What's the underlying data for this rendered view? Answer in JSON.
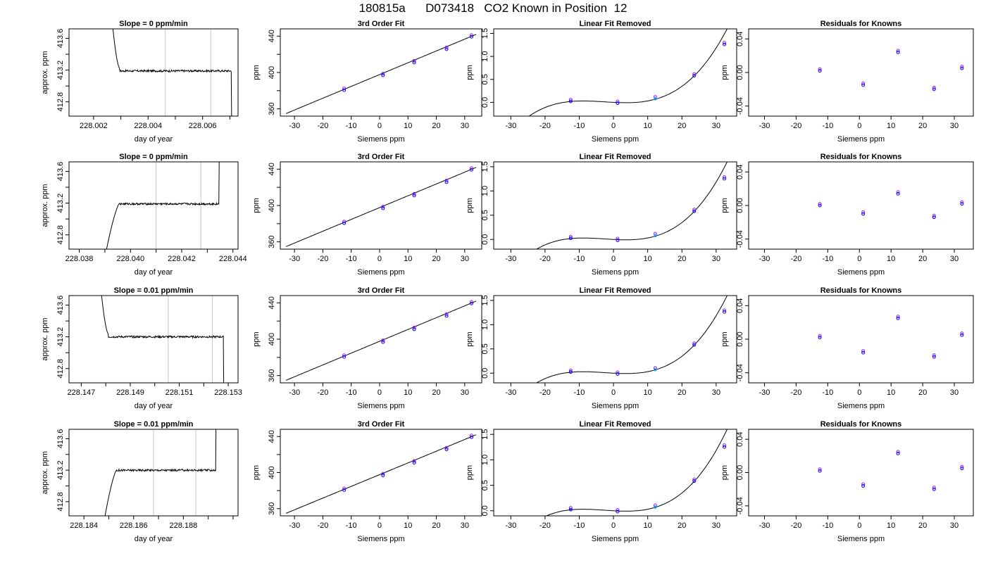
{
  "page": {
    "title": "180815a      D073418   CO2 Known in Position  12"
  },
  "colors": {
    "trace": "#000000",
    "box": "#000000",
    "marker_lines": "#c8c8c8",
    "fit_line": "#000000",
    "point_a": "#0000ff",
    "point_b": "#a020f0",
    "point_c": "#00bfff"
  },
  "chart_data": [
    {
      "type": "line",
      "title": "Slope =  0  ppm/min",
      "xlabel": "day of year",
      "ylabel": "approx. ppm",
      "xlim": [
        228.0011,
        228.0073
      ],
      "ylim": [
        412.62,
        413.72
      ],
      "xticks": [
        228.002,
        228.003,
        228.004,
        228.005,
        228.006,
        228.007
      ],
      "xticklabels": [
        "228.002",
        "",
        "228.004",
        "",
        "228.006",
        ""
      ],
      "yticks": [
        412.8,
        413.0,
        413.2,
        413.4,
        413.6
      ],
      "yticklabels": [
        "412.8",
        "",
        "413.2",
        "",
        "413.6"
      ],
      "vlines": [
        228.00463,
        228.0063
      ],
      "profile": "fall",
      "trace_start": 228.0026,
      "trace_edge": 228.00295,
      "trace_end": 228.00705,
      "plateau": 413.19
    },
    {
      "type": "line",
      "title": "3rd Order Fit",
      "xlabel": "Siemens ppm",
      "ylabel": "ppm",
      "xlim": [
        -35,
        36
      ],
      "ylim": [
        352,
        448
      ],
      "xticks": [
        -30,
        -20,
        -10,
        0,
        10,
        20,
        30
      ],
      "yticks": [
        360,
        380,
        400,
        420,
        440
      ],
      "yticklabels": [
        "360",
        "",
        "400",
        "",
        "440"
      ],
      "curve": {
        "kind": "linear",
        "a": 397.7,
        "b": 1.3
      },
      "fit_x": [
        -33,
        34
      ],
      "points_x": [
        -12.5,
        1.2,
        12.2,
        23.6,
        32.4
      ],
      "points_y": [
        381.5,
        397.8,
        411.9,
        426.6,
        440.2
      ]
    },
    {
      "type": "line",
      "title": "Linear Fit Removed",
      "xlabel": "Siemens ppm",
      "ylabel": "ppm",
      "xlim": [
        -35,
        36
      ],
      "ylim": [
        -0.3,
        1.6
      ],
      "xticks": [
        -30,
        -20,
        -10,
        0,
        10,
        20,
        30
      ],
      "yticks": [
        0,
        0.5,
        1.0,
        1.5
      ],
      "yticklabels": [
        "0.0",
        "0.5",
        "1.0",
        "1.5"
      ],
      "curve": {
        "kind": "cubic",
        "c3": 3.82e-05,
        "c2": 0.000295,
        "c1": -0.00375,
        "c0": 0.0
      },
      "fit_x": [
        -33,
        34
      ],
      "points_x": [
        -12.5,
        1.2,
        12.2,
        23.6,
        32.4
      ],
      "points_y": [
        0.04,
        0.0,
        0.1,
        0.6,
        1.28
      ]
    },
    {
      "type": "scatter",
      "title": "Residuals for Knowns",
      "xlabel": "Siemens ppm",
      "ylabel": "ppm",
      "xlim": [
        -35,
        36
      ],
      "ylim": [
        -0.052,
        0.052
      ],
      "xticks": [
        -30,
        -20,
        -10,
        0,
        10,
        20,
        30
      ],
      "yticks": [
        -0.04,
        0,
        0.04
      ],
      "yticklabels": [
        "-0.04",
        "0.00",
        "0.04"
      ],
      "points_x": [
        -12.5,
        1.2,
        12.2,
        23.6,
        32.4
      ],
      "points_y": [
        0.003,
        -0.014,
        0.025,
        -0.019,
        0.006
      ]
    },
    {
      "type": "line",
      "title": "Slope =  0  ppm/min",
      "xlabel": "day of year",
      "ylabel": "approx. ppm",
      "xlim": [
        228.0376,
        228.0442
      ],
      "ylim": [
        412.62,
        413.72
      ],
      "xticks": [
        228.038,
        228.039,
        228.04,
        228.041,
        228.042,
        228.043,
        228.044
      ],
      "xticklabels": [
        "228.038",
        "",
        "228.040",
        "",
        "228.042",
        "",
        "228.044"
      ],
      "yticks": [
        412.8,
        413.0,
        413.2,
        413.4,
        413.6
      ],
      "yticklabels": [
        "412.8",
        "",
        "413.2",
        "",
        "413.6"
      ],
      "vlines": [
        228.041,
        228.04275
      ],
      "profile": "rise",
      "trace_start": 228.0389,
      "trace_edge": 228.03955,
      "trace_end": 228.04345,
      "plateau": 413.19
    },
    {
      "type": "line",
      "title": "3rd Order Fit",
      "xlabel": "Siemens ppm",
      "ylabel": "ppm",
      "xlim": [
        -35,
        36
      ],
      "ylim": [
        352,
        448
      ],
      "xticks": [
        -30,
        -20,
        -10,
        0,
        10,
        20,
        30
      ],
      "yticks": [
        360,
        380,
        400,
        420,
        440
      ],
      "yticklabels": [
        "360",
        "",
        "400",
        "",
        "440"
      ],
      "curve": {
        "kind": "linear",
        "a": 397.7,
        "b": 1.3
      },
      "fit_x": [
        -33,
        34
      ],
      "points_x": [
        -12.5,
        1.2,
        12.2,
        23.6,
        32.4
      ],
      "points_y": [
        381.5,
        397.8,
        411.9,
        426.6,
        440.2
      ]
    },
    {
      "type": "line",
      "title": "Linear Fit Removed",
      "xlabel": "Siemens ppm",
      "ylabel": "ppm",
      "xlim": [
        -35,
        36
      ],
      "ylim": [
        -0.2,
        1.6
      ],
      "xticks": [
        -30,
        -20,
        -10,
        0,
        10,
        20,
        30
      ],
      "yticks": [
        0,
        0.5,
        1.0,
        1.5
      ],
      "yticklabels": [
        "0.0",
        "0.5",
        "1.0",
        "1.5"
      ],
      "curve": {
        "kind": "cubic",
        "c3": 3.82e-05,
        "c2": 0.000295,
        "c1": -0.00375,
        "c0": 0.0
      },
      "fit_x": [
        -33,
        34
      ],
      "points_x": [
        -12.5,
        1.2,
        12.2,
        23.6,
        32.4
      ],
      "points_y": [
        0.04,
        0.0,
        0.1,
        0.6,
        1.27
      ]
    },
    {
      "type": "scatter",
      "title": "Residuals for Knowns",
      "xlabel": "Siemens ppm",
      "ylabel": "ppm",
      "xlim": [
        -35,
        36
      ],
      "ylim": [
        -0.052,
        0.052
      ],
      "xticks": [
        -30,
        -20,
        -10,
        0,
        10,
        20,
        30
      ],
      "yticks": [
        -0.04,
        0,
        0.04
      ],
      "yticklabels": [
        "-0.04",
        "0.00",
        "0.04"
      ],
      "points_x": [
        -12.5,
        1.2,
        12.2,
        23.6,
        32.4
      ],
      "points_y": [
        0.001,
        -0.009,
        0.015,
        -0.013,
        0.003
      ]
    },
    {
      "type": "line",
      "title": "Slope =  0.01  ppm/min",
      "xlabel": "day of year",
      "ylabel": "approx. ppm",
      "xlim": [
        228.1465,
        228.1534
      ],
      "ylim": [
        412.62,
        413.72
      ],
      "xticks": [
        228.147,
        228.148,
        228.149,
        228.15,
        228.151,
        228.152,
        228.153
      ],
      "xticklabels": [
        "228.147",
        "",
        "228.149",
        "",
        "228.151",
        "",
        "228.153"
      ],
      "yticks": [
        412.8,
        413.0,
        413.2,
        413.4,
        413.6
      ],
      "yticklabels": [
        "412.8",
        "",
        "413.2",
        "",
        "413.6"
      ],
      "vlines": [
        228.15055,
        228.15235
      ],
      "profile": "fall",
      "trace_start": 228.1477,
      "trace_edge": 228.1481,
      "trace_end": 228.1528,
      "plateau": 413.2
    },
    {
      "type": "line",
      "title": "3rd Order Fit",
      "xlabel": "Siemens ppm",
      "ylabel": "ppm",
      "xlim": [
        -35,
        36
      ],
      "ylim": [
        352,
        448
      ],
      "xticks": [
        -30,
        -20,
        -10,
        0,
        10,
        20,
        30
      ],
      "yticks": [
        360,
        380,
        400,
        420,
        440
      ],
      "yticklabels": [
        "360",
        "",
        "400",
        "",
        "440"
      ],
      "curve": {
        "kind": "linear",
        "a": 397.7,
        "b": 1.3
      },
      "fit_x": [
        -33,
        34
      ],
      "points_x": [
        -12.5,
        1.2,
        12.2,
        23.6,
        32.4
      ],
      "points_y": [
        381.5,
        397.8,
        411.9,
        426.6,
        440.2
      ]
    },
    {
      "type": "line",
      "title": "Linear Fit Removed",
      "xlabel": "Siemens ppm",
      "ylabel": "ppm",
      "xlim": [
        -35,
        36
      ],
      "ylim": [
        -0.2,
        1.6
      ],
      "xticks": [
        -30,
        -20,
        -10,
        0,
        10,
        20,
        30
      ],
      "yticks": [
        0,
        0.5,
        1.0,
        1.5
      ],
      "yticklabels": [
        "0.0",
        "0.5",
        "1.0",
        "1.5"
      ],
      "curve": {
        "kind": "cubic",
        "c3": 3.82e-05,
        "c2": 0.000295,
        "c1": -0.00375,
        "c0": 0.0
      },
      "fit_x": [
        -33,
        34
      ],
      "points_x": [
        -12.5,
        1.2,
        12.2,
        23.6,
        32.4
      ],
      "points_y": [
        0.04,
        0.0,
        0.09,
        0.6,
        1.28
      ]
    },
    {
      "type": "scatter",
      "title": "Residuals for Knowns",
      "xlabel": "Siemens ppm",
      "ylabel": "ppm",
      "xlim": [
        -35,
        36
      ],
      "ylim": [
        -0.052,
        0.052
      ],
      "xticks": [
        -30,
        -20,
        -10,
        0,
        10,
        20,
        30
      ],
      "yticks": [
        -0.04,
        0,
        0.04
      ],
      "yticklabels": [
        "-0.04",
        "0.00",
        "0.04"
      ],
      "points_x": [
        -12.5,
        1.2,
        12.2,
        23.6,
        32.4
      ],
      "points_y": [
        0.003,
        -0.015,
        0.026,
        -0.02,
        0.006
      ]
    },
    {
      "type": "line",
      "title": "Slope =  0.01  ppm/min",
      "xlabel": "day of year",
      "ylabel": "approx. ppm",
      "xlim": [
        228.1834,
        228.1902
      ],
      "ylim": [
        412.62,
        413.72
      ],
      "xticks": [
        228.184,
        228.185,
        228.186,
        228.187,
        228.188,
        228.189,
        228.19
      ],
      "xticklabels": [
        "228.184",
        "",
        "228.186",
        "",
        "228.188",
        "",
        ""
      ],
      "yticks": [
        412.8,
        413.0,
        413.2,
        413.4,
        413.6
      ],
      "yticklabels": [
        "412.8",
        "",
        "413.2",
        "",
        "413.6"
      ],
      "vlines": [
        228.1868,
        228.1885
      ],
      "profile": "rise",
      "trace_start": 228.1847,
      "trace_edge": 228.1853,
      "trace_end": 228.1893,
      "plateau": 413.2
    },
    {
      "type": "line",
      "title": "3rd Order Fit",
      "xlabel": "Siemens ppm",
      "ylabel": "ppm",
      "xlim": [
        -35,
        36
      ],
      "ylim": [
        352,
        448
      ],
      "xticks": [
        -30,
        -20,
        -10,
        0,
        10,
        20,
        30
      ],
      "yticks": [
        360,
        380,
        400,
        420,
        440
      ],
      "yticklabels": [
        "360",
        "",
        "400",
        "",
        "440"
      ],
      "curve": {
        "kind": "linear",
        "a": 397.7,
        "b": 1.3
      },
      "fit_x": [
        -33,
        34
      ],
      "points_x": [
        -12.5,
        1.2,
        12.2,
        23.6,
        32.4
      ],
      "points_y": [
        381.5,
        397.8,
        411.9,
        426.6,
        440.2
      ]
    },
    {
      "type": "line",
      "title": "Linear Fit Removed",
      "xlabel": "Siemens ppm",
      "ylabel": "ppm",
      "xlim": [
        -35,
        36
      ],
      "ylim": [
        -0.1,
        1.6
      ],
      "xticks": [
        -30,
        -20,
        -10,
        0,
        10,
        20,
        30
      ],
      "yticks": [
        0,
        0.5,
        1.0,
        1.5
      ],
      "yticklabels": [
        "0.0",
        "0.5",
        "1.0",
        "1.5"
      ],
      "curve": {
        "kind": "cubic",
        "c3": 3.82e-05,
        "c2": 0.000295,
        "c1": -0.00375,
        "c0": 0.0
      },
      "fit_x": [
        -33,
        34
      ],
      "points_x": [
        -12.5,
        1.2,
        12.2,
        23.6,
        32.4
      ],
      "points_y": [
        0.04,
        0.0,
        0.09,
        0.6,
        1.27
      ]
    },
    {
      "type": "scatter",
      "title": "Residuals for Knowns",
      "xlabel": "Siemens ppm",
      "ylabel": "ppm",
      "xlim": [
        -35,
        36
      ],
      "ylim": [
        -0.052,
        0.052
      ],
      "xticks": [
        -30,
        -20,
        -10,
        0,
        10,
        20,
        30
      ],
      "yticks": [
        -0.04,
        0,
        0.04
      ],
      "yticklabels": [
        "-0.04",
        "0.00",
        "0.04"
      ],
      "points_x": [
        -12.5,
        1.2,
        12.2,
        23.6,
        32.4
      ],
      "points_y": [
        0.003,
        -0.015,
        0.024,
        -0.019,
        0.006
      ]
    }
  ]
}
